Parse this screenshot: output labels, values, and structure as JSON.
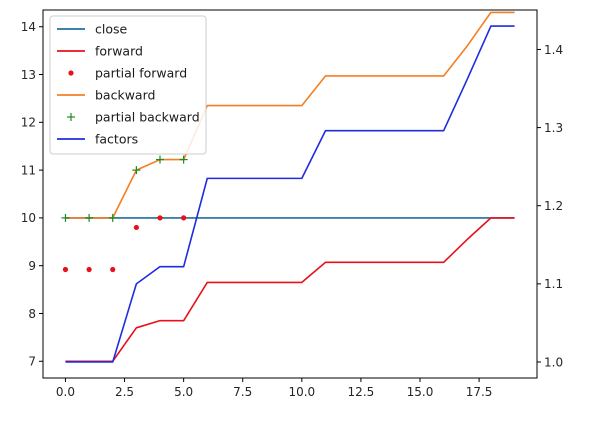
{
  "chart_data": {
    "type": "line",
    "xlim": [
      -0.95,
      19.95
    ],
    "ylim_left": [
      6.65,
      14.35
    ],
    "ylim_right": [
      0.9795,
      1.4505
    ],
    "x_ticks": [
      0.0,
      2.5,
      5.0,
      7.5,
      10.0,
      12.5,
      15.0,
      17.5
    ],
    "x_tick_labels": [
      "0.0",
      "2.5",
      "5.0",
      "7.5",
      "10.0",
      "12.5",
      "15.0",
      "17.5"
    ],
    "y_left_ticks": [
      7,
      8,
      9,
      10,
      11,
      12,
      13,
      14
    ],
    "y_left_tick_labels": [
      "7",
      "8",
      "9",
      "10",
      "11",
      "12",
      "13",
      "14"
    ],
    "y_right_ticks": [
      1.0,
      1.1,
      1.2,
      1.3,
      1.4
    ],
    "y_right_tick_labels": [
      "1.0",
      "1.1",
      "1.2",
      "1.3",
      "1.4"
    ],
    "legend": {
      "position": "top-left"
    },
    "x": [
      0,
      1,
      2,
      3,
      4,
      5,
      6,
      7,
      8,
      9,
      10,
      11,
      12,
      13,
      14,
      15,
      16,
      17,
      18,
      19
    ],
    "series": [
      {
        "name": "close",
        "kind": "line",
        "axis": "left",
        "color": "#1f6f9f",
        "values": [
          10,
          10,
          10,
          10,
          10,
          10,
          10,
          10,
          10,
          10,
          10,
          10,
          10,
          10,
          10,
          10,
          10,
          10,
          10,
          10
        ]
      },
      {
        "name": "forward",
        "kind": "line",
        "axis": "left",
        "color": "#e8111b",
        "values": [
          7,
          7,
          7,
          7.7,
          7.85,
          7.85,
          8.65,
          8.65,
          8.65,
          8.65,
          8.65,
          9.07,
          9.07,
          9.07,
          9.07,
          9.07,
          9.07,
          9.55,
          10,
          10
        ]
      },
      {
        "name": "partial forward",
        "kind": "scatter",
        "marker": "dot",
        "axis": "left",
        "color": "#e8111b",
        "x": [
          0,
          1,
          2,
          3,
          4,
          5
        ],
        "values": [
          8.92,
          8.92,
          8.92,
          9.8,
          10,
          10
        ]
      },
      {
        "name": "backward",
        "kind": "line",
        "axis": "left",
        "color": "#f47f22",
        "values": [
          10,
          10,
          10,
          11,
          11.22,
          11.22,
          12.35,
          12.35,
          12.35,
          12.35,
          12.35,
          12.97,
          12.97,
          12.97,
          12.97,
          12.97,
          12.97,
          13.6,
          14.3,
          14.3
        ]
      },
      {
        "name": "partial backward",
        "kind": "scatter",
        "marker": "plus",
        "axis": "left",
        "color": "#1c8a23",
        "x": [
          0,
          1,
          2,
          3,
          4,
          5
        ],
        "values": [
          10,
          10,
          10,
          11,
          11.22,
          11.22
        ]
      },
      {
        "name": "factors",
        "kind": "line",
        "axis": "right",
        "color": "#1f2ce0",
        "values": [
          1.0,
          1.0,
          1.0,
          1.1,
          1.122,
          1.122,
          1.235,
          1.235,
          1.235,
          1.235,
          1.235,
          1.296,
          1.296,
          1.296,
          1.296,
          1.296,
          1.296,
          1.362,
          1.43,
          1.43
        ]
      }
    ]
  }
}
